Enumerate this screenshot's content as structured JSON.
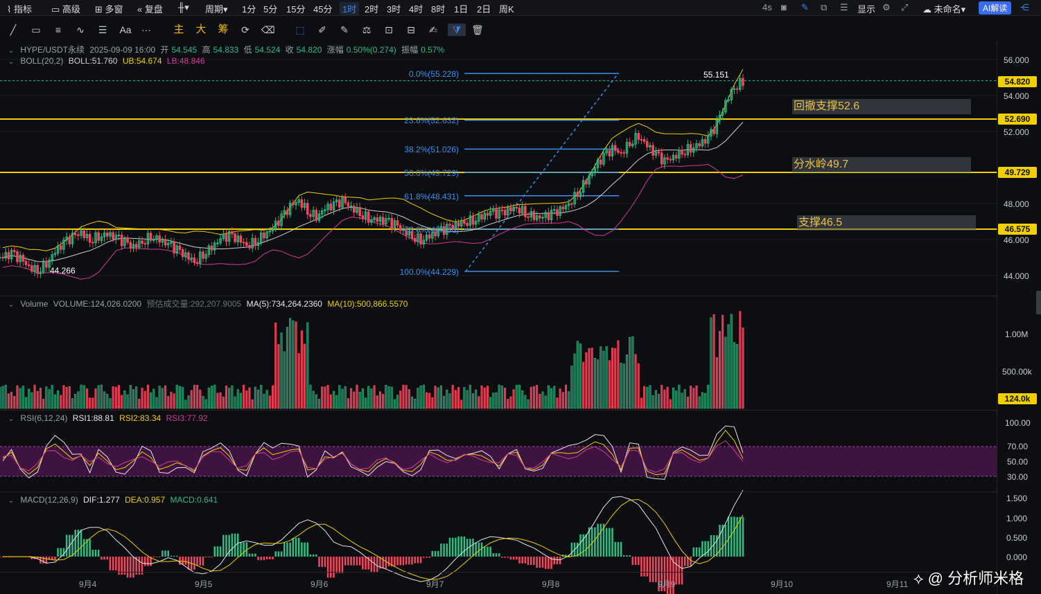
{
  "topbar": {
    "left": [
      {
        "label": "指标",
        "icon": "chart-icon"
      },
      {
        "label": "高级",
        "icon": "calendar-icon"
      },
      {
        "label": "多窗",
        "icon": "grid-icon"
      },
      {
        "label": "复盘",
        "icon": "replay-icon"
      },
      {
        "label": "",
        "icon": "candle-type-icon"
      },
      {
        "label": "周期",
        "icon": ""
      }
    ],
    "intervals": [
      "1分",
      "5分",
      "15分",
      "45分",
      "1时",
      "2时",
      "3时",
      "4时",
      "8时",
      "1日",
      "2日",
      "周K"
    ],
    "active_interval": "1时",
    "right_text": "4s",
    "display_label": "显示",
    "cloud_label": "未命名",
    "ai_label": "AI解读"
  },
  "toolbar": {
    "yellow_tools": [
      "主",
      "大",
      "筹"
    ],
    "text_tool": "Aa",
    "more": "···"
  },
  "legend_main": {
    "symbol": "HYPE/USDT永续",
    "datetime": "2025-09-09 16:00",
    "open_label": "开",
    "open": "54.545",
    "high_label": "高",
    "high": "54.833",
    "low_label": "低",
    "low": "54.524",
    "close_label": "收",
    "close": "54.820",
    "change_label": "涨幅",
    "change": "0.50%(0.274)",
    "amp_label": "振幅",
    "amp": "0.57%"
  },
  "legend_boll": {
    "name": "BOLL(20,2)",
    "boll": "BOLL:51.760",
    "ub": "UB:54.674",
    "lb": "LB:48.846"
  },
  "legend_volume": {
    "name": "Volume",
    "volume": "VOLUME:124,026.0200",
    "est": "预估成交量:292,207.9005",
    "ma5": "MA(5):734,264.2360",
    "ma10": "MA(10):500,866.5570"
  },
  "legend_rsi": {
    "name": "RSI(6,12,24)",
    "rsi1": "RSI1:88.81",
    "rsi2": "RSI2:83.34",
    "rsi3": "RSI3:77.92"
  },
  "legend_macd": {
    "name": "MACD(12,26,9)",
    "dif": "DIF:1.277",
    "dea": "DEA:0.957",
    "macd": "MACD:0.641"
  },
  "price_axis": [
    "56.000",
    "54.000",
    "52.000",
    "48.000",
    "46.000",
    "44.000"
  ],
  "price_tags": {
    "last": "54.820",
    "s1": "52.690",
    "s2": "49.729",
    "s3": "46.575"
  },
  "volume_axis": [
    "1.00M",
    "500.00k"
  ],
  "volume_tag": "124.0k",
  "rsi_axis": [
    "100.00",
    "70.00",
    "50.00",
    "30.00"
  ],
  "macd_axis": [
    "1.500",
    "1.000",
    "0.500",
    "0.000"
  ],
  "dates": [
    "9月4",
    "9月5",
    "9月6",
    "9月7",
    "9月8",
    "9月9",
    "9月10",
    "9月11"
  ],
  "fib": [
    "0.0%(55.228)",
    "23.6%(52.632)",
    "38.2%(51.026)",
    "50.0%(49.729)",
    "61.8%(48.431)",
    "78.6%(46.583)",
    "100.0%(44.229)"
  ],
  "annotations": {
    "high": "55.151",
    "low": "44.266"
  },
  "zones": [
    "回撤支撑52.6",
    "分水岭49.7",
    "支撑46.5"
  ],
  "watermark": "@ 分析师米格",
  "colors": {
    "up": "#2ebd85",
    "down": "#f6465d",
    "boll_mid": "#d0d0d0",
    "boll_ub": "#f0d000",
    "boll_lb": "#d63a9a",
    "hline": "#f0d000",
    "fib": "#3b8ff0"
  },
  "chart_data": {
    "type": "candlestick",
    "close_series": [
      45.0,
      45.2,
      44.9,
      44.5,
      44.3,
      44.7,
      45.3,
      45.8,
      46.1,
      46.4,
      46.0,
      46.2,
      46.3,
      46.1,
      45.8,
      45.6,
      45.9,
      46.2,
      46.0,
      45.7,
      45.4,
      45.1,
      44.8,
      45.2,
      45.6,
      46.0,
      46.2,
      46.0,
      45.7,
      45.9,
      46.3,
      46.6,
      47.2,
      47.8,
      48.2,
      47.6,
      47.3,
      47.7,
      47.9,
      48.1,
      47.8,
      47.5,
      47.2,
      47.1,
      47.0,
      46.8,
      46.5,
      46.2,
      46.0,
      46.2,
      46.4,
      46.6,
      46.8,
      47.0,
      47.1,
      47.3,
      47.5,
      47.4,
      47.6,
      47.8,
      47.5,
      47.3,
      47.2,
      47.4,
      47.6,
      48.0,
      48.6,
      49.3,
      50.0,
      50.6,
      51.0,
      50.8,
      51.4,
      51.8,
      51.2,
      50.7,
      50.3,
      50.6,
      50.9,
      51.1,
      51.3,
      51.6,
      52.4,
      53.6,
      54.5,
      54.8
    ],
    "ylim": [
      43.5,
      56.5
    ]
  }
}
